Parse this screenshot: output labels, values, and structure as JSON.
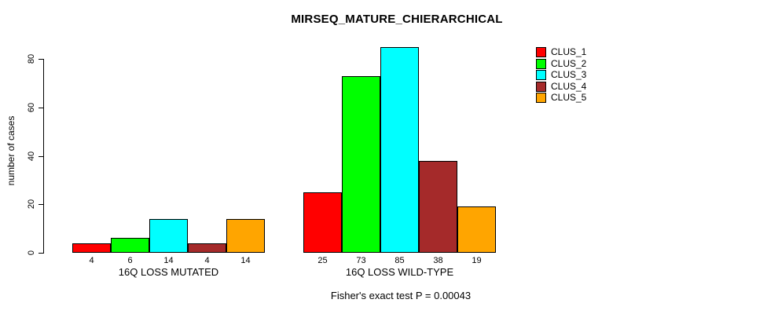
{
  "chart_data": {
    "type": "bar",
    "title": "MIRSEQ_MATURE_CHIERARCHICAL",
    "ylabel": "number of cases",
    "xlabel": "",
    "yticks": [
      0,
      20,
      40,
      60,
      80
    ],
    "ylim": [
      0,
      85
    ],
    "grid": false,
    "legend_position": "right",
    "bar_value_labels_shown": true,
    "categories": [
      "16Q LOSS MUTATED",
      "16Q LOSS WILD-TYPE"
    ],
    "series": [
      {
        "name": "CLUS_1",
        "color": "#FF0000",
        "values": [
          4,
          25
        ]
      },
      {
        "name": "CLUS_2",
        "color": "#00FF00",
        "values": [
          6,
          73
        ]
      },
      {
        "name": "CLUS_3",
        "color": "#00FFFF",
        "values": [
          14,
          85
        ]
      },
      {
        "name": "CLUS_4",
        "color": "#A52A2A",
        "values": [
          4,
          38
        ]
      },
      {
        "name": "CLUS_5",
        "color": "#FFA500",
        "values": [
          14,
          19
        ]
      }
    ],
    "annotation": "Fisher's exact test P = 0.00043"
  },
  "colors": {
    "background": "#FFFFFF",
    "axis": "#000000",
    "text": "#000000"
  }
}
